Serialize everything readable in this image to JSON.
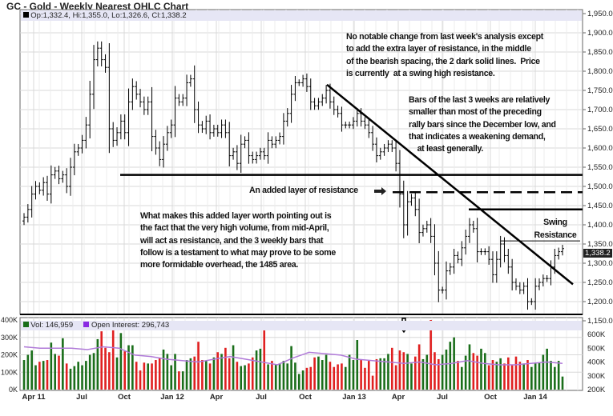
{
  "title": "GC - Gold - Weekly Nearest OHLC Chart",
  "ohlc_legend": "Op:1,332.4, Hi:1,355.0, Lo:1,326.6, Cl:1,338.2",
  "last_price_label": "1,338.2",
  "vol_legend": "Vol: 146,959",
  "oi_legend": "Open Interest: 296,743",
  "colors": {
    "up": "#1a6e1a",
    "down": "#e02020",
    "oi": "#b07ad8",
    "price": "#000000",
    "grid": "#d8d8d8",
    "legend_bg": "#e6e6f5"
  },
  "annotations": {
    "top": "No notable change from last week's analysis except\nto add the extra layer of resistance, in the middle\nof the bearish spacing, the 2 dark solid lines.  Price\nis currently  at a swing high resistance.",
    "bars": "Bars of the last 3 weeks are relatively\nsmaller than most of the preceding\nrally bars since the December low, and\nthat indicates a weakening demand,\n    at least generally.",
    "added": "An added layer of resistance",
    "what": "What makes this added layer worth pointing out is\nthe fact that the very high volume, from mid-April,\nwill act as resistance, and the 3 weekly bars that\nfollow is a testament to what may prove to be some\nmore formidable overhead, the 1485 area.",
    "swing": "Swing\nResistance"
  },
  "chart_data": {
    "type": "ohlc",
    "title": "GC - Gold - Weekly Nearest OHLC Chart",
    "price_ticks": [
      "1,950.0",
      "1,900.0",
      "1,850.0",
      "1,800.0",
      "1,750.0",
      "1,700.0",
      "1,650.0",
      "1,600.0",
      "1,550.0",
      "1,500.0",
      "1,450.0",
      "1,400.0",
      "1,350.0",
      "1,300.0",
      "1,250.0",
      "1,200.0",
      "1,150.0"
    ],
    "price_range": [
      1150,
      1950
    ],
    "x_labels": [
      "Apr 11",
      "Jul",
      "Oct",
      "Jan 12",
      "Apr",
      "Jul",
      "Oct",
      "Jan 13",
      "Apr",
      "Jul",
      "Oct",
      "Jan 14"
    ],
    "weekly_close": [
      1420,
      1440,
      1480,
      1500,
      1490,
      1510,
      1480,
      1530,
      1540,
      1520,
      1530,
      1500,
      1550,
      1590,
      1600,
      1620,
      1660,
      1740,
      1830,
      1860,
      1830,
      1810,
      1650,
      1620,
      1640,
      1670,
      1640,
      1720,
      1760,
      1740,
      1720,
      1700,
      1720,
      1630,
      1600,
      1570,
      1610,
      1640,
      1660,
      1730,
      1720,
      1730,
      1770,
      1780,
      1700,
      1660,
      1650,
      1670,
      1640,
      1650,
      1640,
      1660,
      1640,
      1580,
      1590,
      1560,
      1610,
      1620,
      1580,
      1570,
      1580,
      1590,
      1580,
      1620,
      1610,
      1620,
      1630,
      1670,
      1690,
      1740,
      1770,
      1770,
      1780,
      1760,
      1720,
      1710,
      1720,
      1730,
      1750,
      1720,
      1700,
      1690,
      1660,
      1660,
      1660,
      1670,
      1690,
      1670,
      1660,
      1640,
      1610,
      1580,
      1590,
      1600,
      1610,
      1600,
      1560,
      1480,
      1400,
      1460,
      1470,
      1440,
      1380,
      1390,
      1400,
      1370,
      1300,
      1230,
      1230,
      1280,
      1290,
      1320,
      1310,
      1340,
      1370,
      1400,
      1390,
      1330,
      1330,
      1330,
      1310,
      1270,
      1310,
      1350,
      1320,
      1290,
      1250,
      1240,
      1230,
      1240,
      1200,
      1200,
      1240,
      1250,
      1260,
      1260,
      1290,
      1320,
      1330,
      1338
    ],
    "volume_ticks": [
      "400K",
      "300K",
      "200K",
      "100K",
      "0K"
    ],
    "oi_ticks": [
      "600K",
      "500K",
      "400K",
      "300K",
      "200K"
    ],
    "weekly_volume_k": [
      170,
      200,
      225,
      140,
      160,
      165,
      170,
      270,
      205,
      195,
      295,
      150,
      120,
      135,
      160,
      140,
      165,
      200,
      210,
      290,
      335,
      240,
      215,
      350,
      185,
      325,
      220,
      255,
      255,
      160,
      110,
      155,
      150,
      150,
      170,
      180,
      230,
      205,
      140,
      205,
      105,
      105,
      170,
      180,
      190,
      275,
      170,
      165,
      150,
      185,
      215,
      205,
      240,
      180,
      255,
      160,
      135,
      140,
      150,
      185,
      225,
      235,
      340,
      145,
      165,
      145,
      150,
      165,
      150,
      250,
      155,
      90,
      110,
      125,
      130,
      185,
      190,
      170,
      200,
      160,
      130,
      145,
      150,
      130,
      200,
      170,
      285,
      170,
      125,
      165,
      80,
      175,
      180,
      180,
      205,
      240,
      140,
      225,
      215,
      205,
      150,
      190,
      260,
      175,
      200,
      400,
      215,
      175,
      200,
      230,
      275,
      300,
      165,
      130,
      195,
      260,
      210,
      195,
      235,
      210,
      140,
      170,
      160,
      180,
      150,
      185,
      140,
      190,
      160,
      150,
      170,
      130,
      150,
      155,
      200,
      235,
      165,
      130,
      165,
      75,
      125,
      170,
      145,
      200,
      225,
      120,
      135,
      150,
      150,
      147
    ],
    "open_interest_k": [
      510,
      500,
      500,
      500,
      490,
      510,
      500,
      450,
      440,
      420,
      410,
      400,
      420,
      440,
      420,
      400,
      380,
      430,
      470,
      460,
      450,
      420,
      410,
      400,
      390,
      400,
      380,
      390,
      410,
      390,
      380,
      380,
      390,
      400,
      390
    ],
    "horizontal_levels": [
      {
        "price": 1530,
        "style": "solid"
      },
      {
        "price": 1485,
        "style": "dashed"
      },
      {
        "price": 1440,
        "style": "solid"
      },
      {
        "price": 1358,
        "style": "thin"
      }
    ],
    "trendline": {
      "from_price": 1765,
      "to_price": 1245
    }
  }
}
